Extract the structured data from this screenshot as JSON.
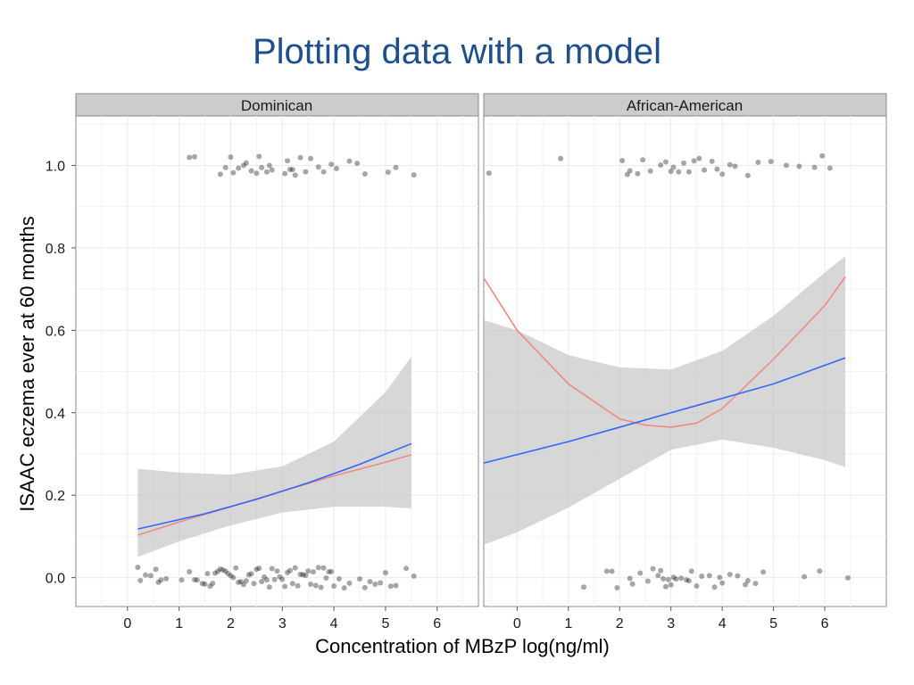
{
  "slide": {
    "title": "Plotting data with a model"
  },
  "colors": {
    "title": "#1f4e8c",
    "panel_bg": "#ffffff",
    "strip_bg": "#cccccc",
    "grid": "#ebebeb",
    "ribbon": "#bdbdbd",
    "linear_fit": "#3366ff",
    "quadratic_fit": "#f08a80",
    "points": "#000000"
  },
  "chart_data": {
    "type": "scatter",
    "xlabel": "Concentration of MBzP log(ng/ml)",
    "ylabel": "ISAAC eczema ever at 60 months",
    "x_ticks": [
      0,
      1,
      2,
      3,
      4,
      5,
      6
    ],
    "y_ticks": [
      0.0,
      0.2,
      0.4,
      0.6,
      0.8,
      1.0
    ],
    "y_tick_labels": [
      "0.0",
      "0.2",
      "0.4",
      "0.6",
      "0.8",
      "1.0"
    ],
    "panels": [
      {
        "label": "Dominican",
        "xlim": [
          -1.0,
          6.8
        ],
        "ylim": [
          -0.07,
          1.12
        ],
        "linear_fit": {
          "x": [
            0.2,
            1.5,
            2.5,
            3.5,
            4.5,
            5.5
          ],
          "y": [
            0.118,
            0.155,
            0.19,
            0.23,
            0.275,
            0.325
          ]
        },
        "quadratic_fit": {
          "x": [
            0.2,
            1.0,
            2.0,
            3.0,
            4.0,
            5.0,
            5.5
          ],
          "y": [
            0.103,
            0.135,
            0.172,
            0.21,
            0.247,
            0.28,
            0.298
          ]
        },
        "ci_ribbon": {
          "x": [
            0.2,
            1.0,
            2.0,
            3.0,
            4.0,
            5.0,
            5.5
          ],
          "lower": [
            0.05,
            0.088,
            0.127,
            0.158,
            0.172,
            0.172,
            0.168
          ],
          "upper": [
            0.264,
            0.255,
            0.25,
            0.27,
            0.33,
            0.45,
            0.536
          ]
        },
        "points_y1": [
          1.2,
          1.3,
          1.8,
          1.9,
          2.0,
          2.05,
          2.15,
          2.25,
          2.3,
          2.4,
          2.5,
          2.55,
          2.6,
          2.7,
          2.75,
          2.8,
          3.05,
          3.1,
          3.15,
          3.2,
          3.25,
          3.35,
          3.45,
          3.55,
          3.7,
          3.8,
          3.95,
          4.05,
          4.3,
          4.45,
          4.6,
          5.05,
          5.2,
          5.55
        ],
        "points_y0": [
          0.2,
          0.25,
          0.35,
          0.45,
          0.55,
          0.6,
          0.65,
          0.75,
          1.05,
          1.2,
          1.3,
          1.35,
          1.45,
          1.5,
          1.55,
          1.6,
          1.65,
          1.7,
          1.75,
          1.8,
          1.85,
          1.9,
          1.95,
          2.0,
          2.05,
          2.1,
          2.15,
          2.2,
          2.25,
          2.3,
          2.35,
          2.4,
          2.45,
          2.5,
          2.55,
          2.6,
          2.65,
          2.7,
          2.75,
          2.8,
          2.85,
          2.9,
          2.95,
          3.0,
          3.05,
          3.1,
          3.15,
          3.2,
          3.25,
          3.3,
          3.35,
          3.4,
          3.45,
          3.5,
          3.55,
          3.6,
          3.65,
          3.7,
          3.75,
          3.8,
          3.85,
          3.9,
          3.95,
          4.0,
          4.1,
          4.2,
          4.3,
          4.5,
          4.6,
          4.7,
          4.8,
          4.9,
          5.0,
          5.1,
          5.2,
          5.4,
          5.55
        ]
      },
      {
        "label": "African-American",
        "xlim": [
          -0.65,
          7.2
        ],
        "ylim": [
          -0.07,
          1.12
        ],
        "linear_fit": {
          "x": [
            -0.65,
            1.0,
            2.0,
            3.0,
            4.0,
            5.0,
            6.4
          ],
          "y": [
            0.278,
            0.33,
            0.365,
            0.4,
            0.435,
            0.47,
            0.533
          ]
        },
        "quadratic_fit": {
          "x": [
            -0.65,
            0.0,
            1.0,
            2.0,
            2.5,
            3.0,
            3.5,
            4.0,
            5.0,
            6.0,
            6.4
          ],
          "y": [
            0.727,
            0.6,
            0.47,
            0.385,
            0.37,
            0.365,
            0.375,
            0.41,
            0.53,
            0.66,
            0.73
          ]
        },
        "ci_ribbon": {
          "x": [
            -0.65,
            0.0,
            1.0,
            2.0,
            3.0,
            4.0,
            5.0,
            6.0,
            6.4
          ],
          "lower": [
            0.08,
            0.11,
            0.17,
            0.24,
            0.31,
            0.335,
            0.315,
            0.285,
            0.268
          ],
          "upper": [
            0.625,
            0.6,
            0.54,
            0.51,
            0.505,
            0.55,
            0.635,
            0.74,
            0.78
          ]
        },
        "points_y1": [
          -0.55,
          0.85,
          2.05,
          2.15,
          2.2,
          2.35,
          2.45,
          2.6,
          2.8,
          2.9,
          3.0,
          3.05,
          3.15,
          3.25,
          3.35,
          3.45,
          3.55,
          3.65,
          3.8,
          3.9,
          4.0,
          4.15,
          4.25,
          4.5,
          4.7,
          4.95,
          5.25,
          5.5,
          5.8,
          5.95,
          6.1
        ],
        "points_y0": [
          1.3,
          1.75,
          1.85,
          1.95,
          2.2,
          2.25,
          2.4,
          2.55,
          2.65,
          2.75,
          2.8,
          2.85,
          2.9,
          2.95,
          3.0,
          3.05,
          3.1,
          3.2,
          3.3,
          3.35,
          3.4,
          3.5,
          3.6,
          3.75,
          3.85,
          3.95,
          4.0,
          4.15,
          4.3,
          4.45,
          4.5,
          4.65,
          4.8,
          5.6,
          5.9,
          6.45
        ]
      }
    ]
  }
}
